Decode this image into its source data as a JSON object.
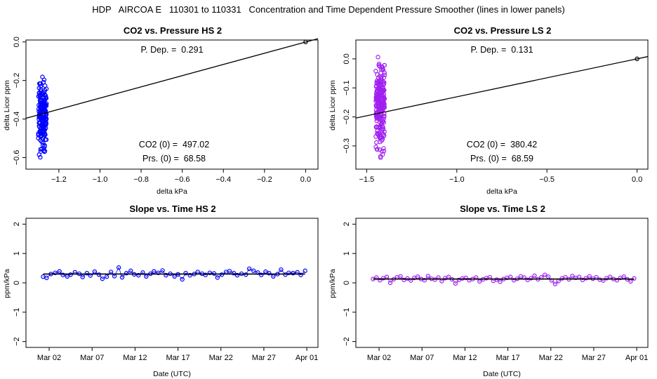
{
  "figure_title": "HDP   AIRCOA E   110301 to 110331   Concentration and Time Dependent Pressure Smoother (lines in lower panels)",
  "colors": {
    "hs_points": "#0000ff",
    "ls_points": "#a020f0",
    "lines": "#000000",
    "axes": "#000000"
  },
  "chart_data": [
    {
      "id": "p1",
      "type": "scatter",
      "title": "CO2 vs. Pressure HS 2",
      "xlabel": "delta kPa",
      "ylabel": "delta Licor ppm",
      "xlim": [
        -1.36,
        0.06
      ],
      "ylim": [
        -0.66,
        0.01
      ],
      "xticks": [
        -1.2,
        -1.0,
        -0.8,
        -0.6,
        -0.4,
        -0.2,
        0.0
      ],
      "xtick_labels": [
        "−1.2",
        "−1.0",
        "−0.8",
        "−0.6",
        "−0.4",
        "−0.2",
        "0.0"
      ],
      "yticks": [
        0.0,
        -0.2,
        -0.4,
        -0.6
      ],
      "ytick_labels": [
        "0.0",
        "−0.2",
        "−0.4",
        "−0.6"
      ],
      "color_key": "hs_points",
      "cluster": {
        "x_min": -1.3,
        "x_max": -1.26,
        "y_min": -0.65,
        "y_max": -0.13,
        "approx_count": 180
      },
      "origin_point": [
        0.0,
        0.0
      ],
      "fit_line": {
        "x0": -1.36,
        "y0": -0.396,
        "x1": 0.06,
        "y1": 0.017
      },
      "annotations": {
        "p_dep": "P. Dep. =  0.291",
        "co2_0": "CO2 (0) =  497.02",
        "prs_0": "Prs. (0) =  68.58"
      }
    },
    {
      "id": "p2",
      "type": "scatter",
      "title": "CO2 vs. Pressure LS 2",
      "xlabel": "delta kPa",
      "ylabel": "delta Licor ppm",
      "xlim": [
        -1.56,
        0.06
      ],
      "ylim": [
        -0.38,
        0.065
      ],
      "xticks": [
        -1.5,
        -1.0,
        -0.5,
        0.0
      ],
      "xtick_labels": [
        "−1.5",
        "−1.0",
        "−0.5",
        "0.0"
      ],
      "yticks": [
        0.0,
        -0.1,
        -0.2,
        -0.3
      ],
      "ytick_labels": [
        "0.0",
        "−0.1",
        "−0.2",
        "−0.3"
      ],
      "color_key": "ls_points",
      "cluster": {
        "x_min": -1.45,
        "x_max": -1.4,
        "y_min": -0.37,
        "y_max": 0.055,
        "approx_count": 220
      },
      "origin_point": [
        0.0,
        0.0
      ],
      "fit_line": {
        "x0": -1.56,
        "y0": -0.204,
        "x1": 0.06,
        "y1": 0.008
      },
      "annotations": {
        "p_dep": "P. Dep. =  0.131",
        "co2_0": "CO2 (0) =  380.42",
        "prs_0": "Prs. (0) =  68.59"
      }
    },
    {
      "id": "p3",
      "type": "line",
      "title": "Slope vs. Time HS 2",
      "xlabel": "Date (UTC)",
      "ylabel": "ppm/kPa",
      "xlim": [
        -1.7,
        32.3
      ],
      "ylim": [
        -2.2,
        2.2
      ],
      "xticks": [
        1,
        6,
        11,
        16,
        21,
        26,
        31
      ],
      "xtick_labels": [
        "Mar 02",
        "Mar 07",
        "Mar 12",
        "Mar 17",
        "Mar 22",
        "Mar 27",
        "Apr 01"
      ],
      "yticks": [
        -2,
        -1,
        0,
        1,
        2
      ],
      "ytick_labels": [
        "−2",
        "−1",
        "0",
        "1",
        "2"
      ],
      "color_key": "hs_points",
      "series_x": [
        0.3,
        0.7,
        1.2,
        1.7,
        2.2,
        2.6,
        3.1,
        3.5,
        4.0,
        4.5,
        4.9,
        5.4,
        5.8,
        6.3,
        6.8,
        7.2,
        7.7,
        8.2,
        8.6,
        9.1,
        9.5,
        10.0,
        10.5,
        10.9,
        11.4,
        11.9,
        12.3,
        12.8,
        13.2,
        13.7,
        14.2,
        14.6,
        15.1,
        15.6,
        16.0,
        16.5,
        16.9,
        17.4,
        17.9,
        18.3,
        18.8,
        19.2,
        19.7,
        20.2,
        20.6,
        21.1,
        21.6,
        22.0,
        22.5,
        22.9,
        23.4,
        23.9,
        24.3,
        24.8,
        25.3,
        25.7,
        26.2,
        26.6,
        27.1,
        27.6,
        28.0,
        28.5,
        28.9,
        29.4,
        29.9,
        30.3,
        30.8
      ],
      "series_y": [
        0.21,
        0.17,
        0.3,
        0.34,
        0.39,
        0.27,
        0.22,
        0.28,
        0.36,
        0.31,
        0.2,
        0.33,
        0.25,
        0.38,
        0.28,
        0.14,
        0.21,
        0.37,
        0.23,
        0.52,
        0.19,
        0.33,
        0.41,
        0.29,
        0.26,
        0.35,
        0.22,
        0.31,
        0.39,
        0.34,
        0.42,
        0.26,
        0.31,
        0.22,
        0.29,
        0.12,
        0.33,
        0.26,
        0.3,
        0.37,
        0.31,
        0.27,
        0.34,
        0.32,
        0.18,
        0.28,
        0.37,
        0.4,
        0.33,
        0.26,
        0.31,
        0.28,
        0.48,
        0.41,
        0.35,
        0.27,
        0.38,
        0.33,
        0.22,
        0.3,
        0.45,
        0.28,
        0.34,
        0.33,
        0.36,
        0.27,
        0.41
      ],
      "smoother": {
        "x0": 0.3,
        "x1": 30.8,
        "y": 0.3
      }
    },
    {
      "id": "p4",
      "type": "line",
      "title": "Slope vs. Time LS 2",
      "xlabel": "Date (UTC)",
      "ylabel": "ppm/kPa",
      "xlim": [
        -1.7,
        32.3
      ],
      "ylim": [
        -2.2,
        2.2
      ],
      "xticks": [
        1,
        6,
        11,
        16,
        21,
        26,
        31
      ],
      "xtick_labels": [
        "Mar 02",
        "Mar 07",
        "Mar 12",
        "Mar 17",
        "Mar 22",
        "Mar 27",
        "Apr 01"
      ],
      "yticks": [
        -2,
        -1,
        0,
        1,
        2
      ],
      "ytick_labels": [
        "−2",
        "−1",
        "0",
        "1",
        "2"
      ],
      "color_key": "ls_points",
      "series_x": [
        0.3,
        0.7,
        1.1,
        1.5,
        1.9,
        2.3,
        2.7,
        3.1,
        3.5,
        3.9,
        4.3,
        4.7,
        5.1,
        5.5,
        5.9,
        6.3,
        6.7,
        7.1,
        7.5,
        7.9,
        8.3,
        8.7,
        9.1,
        9.5,
        9.9,
        10.3,
        10.7,
        11.1,
        11.5,
        11.9,
        12.3,
        12.7,
        13.1,
        13.5,
        13.9,
        14.3,
        14.7,
        15.1,
        15.5,
        15.9,
        16.3,
        16.7,
        17.1,
        17.5,
        17.9,
        18.3,
        18.7,
        19.1,
        19.5,
        19.9,
        20.3,
        20.7,
        21.1,
        21.5,
        21.9,
        22.3,
        22.7,
        23.1,
        23.5,
        23.9,
        24.3,
        24.7,
        25.1,
        25.5,
        25.9,
        26.3,
        26.7,
        27.1,
        27.5,
        27.9,
        28.3,
        28.7,
        29.1,
        29.5,
        29.9,
        30.3,
        30.7
      ],
      "series_y": [
        0.13,
        0.18,
        0.09,
        0.16,
        0.2,
        0.0,
        0.12,
        0.19,
        0.22,
        0.1,
        0.15,
        0.08,
        0.17,
        0.21,
        0.13,
        0.09,
        0.23,
        0.14,
        0.11,
        0.18,
        0.06,
        0.16,
        0.2,
        0.12,
        -0.02,
        0.1,
        0.15,
        0.17,
        0.09,
        0.13,
        0.18,
        0.05,
        0.12,
        0.16,
        0.19,
        0.07,
        0.11,
        0.04,
        0.13,
        0.17,
        0.2,
        0.09,
        0.14,
        0.22,
        0.18,
        0.1,
        0.16,
        0.24,
        0.12,
        0.19,
        0.27,
        0.21,
        0.08,
        -0.04,
        0.06,
        0.15,
        0.19,
        0.12,
        0.23,
        0.17,
        0.2,
        0.1,
        0.16,
        0.22,
        0.14,
        0.19,
        0.11,
        0.08,
        0.16,
        0.2,
        0.13,
        0.09,
        0.17,
        0.21,
        0.12,
        0.05,
        0.15
      ],
      "smoother": {
        "x0": 0.3,
        "x1": 30.7,
        "y": 0.13
      }
    }
  ]
}
